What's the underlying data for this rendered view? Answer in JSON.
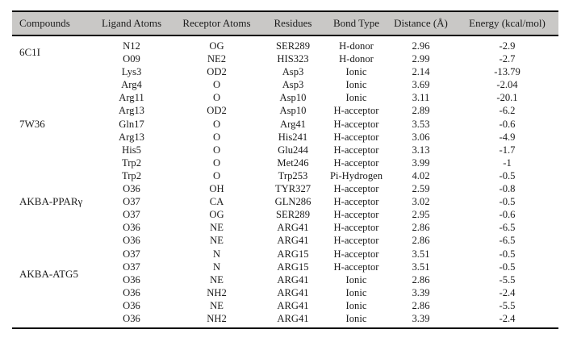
{
  "colors": {
    "header_bg": "#c9c8c6",
    "rule": "#000000",
    "text": "#1b1b1b",
    "page_bg": "#ffffff"
  },
  "table": {
    "columns": [
      "Compounds",
      "Ligand Atoms",
      "Receptor Atoms",
      "Residues",
      "Bond Type",
      "Distance (Å)",
      "Energy (kcal/mol)"
    ],
    "groups": [
      {
        "compound": "6C1I",
        "rows": [
          [
            "N12",
            "OG",
            "SER289",
            "H-donor",
            "2.96",
            "-2.9"
          ],
          [
            "O09",
            "NE2",
            "HIS323",
            "H-donor",
            "2.99",
            "-2.7"
          ]
        ]
      },
      {
        "compound": "7W36",
        "rows": [
          [
            "Lys3",
            "OD2",
            "Asp3",
            "Ionic",
            "2.14",
            "-13.79"
          ],
          [
            "Arg4",
            "O",
            "Asp3",
            "Ionic",
            "3.69",
            "-2.04"
          ],
          [
            "Arg11",
            "O",
            "Asp10",
            "Ionic",
            "3.11",
            "-20.1"
          ],
          [
            "Arg13",
            "OD2",
            "Asp10",
            "H-acceptor",
            "2.89",
            "-6.2"
          ],
          [
            "Gln17",
            "O",
            "Arg41",
            "H-acceptor",
            "3.53",
            "-0.6"
          ],
          [
            "Arg13",
            "O",
            "His241",
            "H-acceptor",
            "3.06",
            "-4.9"
          ],
          [
            "His5",
            "O",
            "Glu244",
            "H-acceptor",
            "3.13",
            "-1.7"
          ],
          [
            "Trp2",
            "O",
            "Met246",
            "H-acceptor",
            "3.99",
            "-1"
          ],
          [
            "Trp2",
            "O",
            "Trp253",
            "Pi-Hydrogen",
            "4.02",
            "-0.5"
          ]
        ]
      },
      {
        "compound": "AKBA-PPARγ",
        "rows": [
          [
            "O36",
            "OH",
            "TYR327",
            "H-acceptor",
            "2.59",
            "-0.8"
          ],
          [
            "O37",
            "CA",
            "GLN286",
            "H-acceptor",
            "3.02",
            "-0.5"
          ],
          [
            "O37",
            "OG",
            "SER289",
            "H-acceptor",
            "2.95",
            "-0.6"
          ]
        ]
      },
      {
        "compound": "AKBA-ATG5",
        "rows": [
          [
            "O36",
            "NE",
            "ARG41",
            "H-acceptor",
            "2.86",
            "-6.5"
          ],
          [
            "O36",
            "NE",
            "ARG41",
            "H-acceptor",
            "2.86",
            "-6.5"
          ],
          [
            "O37",
            "N",
            "ARG15",
            "H-acceptor",
            "3.51",
            "-0.5"
          ],
          [
            "O37",
            "N",
            "ARG15",
            "H-acceptor",
            "3.51",
            "-0.5"
          ],
          [
            "O36",
            "NE",
            "ARG41",
            "Ionic",
            "2.86",
            "-5.5"
          ],
          [
            "O36",
            "NH2",
            "ARG41",
            "Ionic",
            "3.39",
            "-2.4"
          ],
          [
            "O36",
            "NE",
            "ARG41",
            "Ionic",
            "2.86",
            "-5.5"
          ],
          [
            "O36",
            "NH2",
            "ARG41",
            "Ionic",
            "3.39",
            "-2.4"
          ]
        ]
      }
    ]
  }
}
